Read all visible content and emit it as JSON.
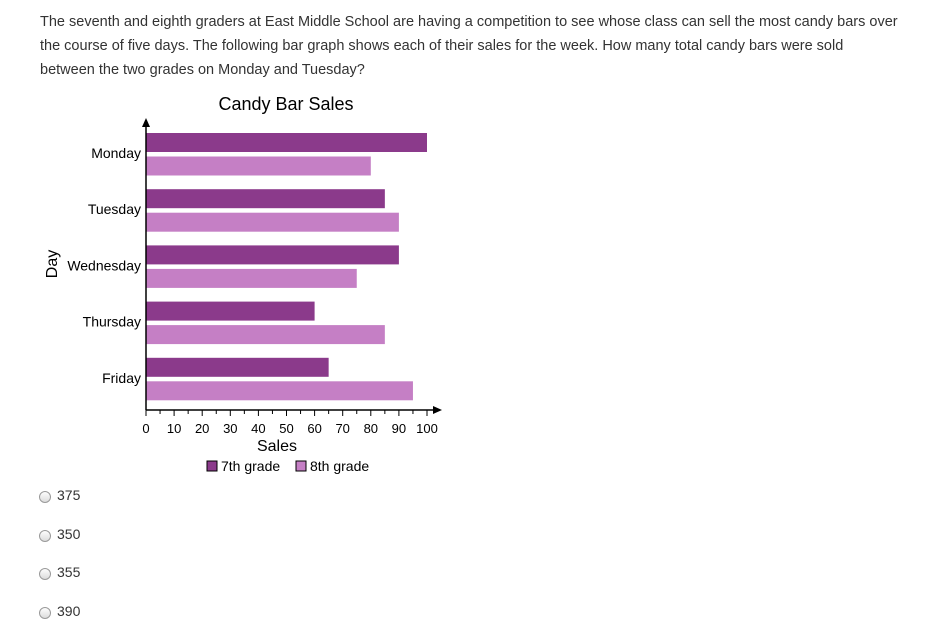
{
  "question": {
    "text": "The seventh and eighth graders at East Middle School are having a competition to see whose class can sell the most candy bars over the course of five days. The following bar graph shows each of their sales for the week. How many total candy bars were sold between the two grades on Monday and Tuesday?"
  },
  "chart_data": {
    "type": "bar",
    "orientation": "horizontal",
    "title": "Candy Bar Sales",
    "xlabel": "Sales",
    "ylabel": "Day",
    "categories": [
      "Monday",
      "Tuesday",
      "Wednesday",
      "Thursday",
      "Friday"
    ],
    "series": [
      {
        "name": "7th grade",
        "color": "#8b3a8b",
        "values": [
          100,
          85,
          90,
          60,
          65
        ]
      },
      {
        "name": "8th grade",
        "color": "#c57fc5",
        "values": [
          80,
          90,
          75,
          85,
          95
        ]
      }
    ],
    "xlim": [
      0,
      100
    ],
    "xticks": [
      "0",
      "10",
      "20",
      "30",
      "40",
      "50",
      "60",
      "70",
      "80",
      "90",
      "100"
    ],
    "grid": false,
    "legend_position": "bottom"
  },
  "choices": [
    {
      "label": "375"
    },
    {
      "label": "350"
    },
    {
      "label": "355"
    },
    {
      "label": "390"
    }
  ]
}
